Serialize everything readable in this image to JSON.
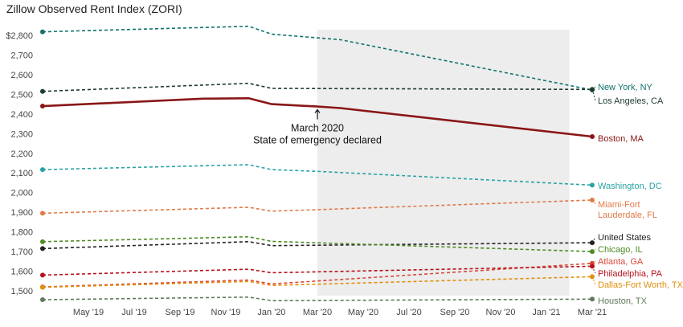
{
  "chart_data": {
    "type": "line",
    "title": "Zillow Observed Rent Index (ZORI)",
    "xlabel": "",
    "ylabel": "",
    "x": [
      "2019-03",
      "2019-04",
      "2019-05",
      "2019-06",
      "2019-07",
      "2019-08",
      "2019-09",
      "2019-10",
      "2019-11",
      "2019-12",
      "2020-01",
      "2020-02",
      "2020-03",
      "2020-04",
      "2020-05",
      "2020-06",
      "2020-07",
      "2020-08",
      "2020-09",
      "2020-10",
      "2020-11",
      "2020-12",
      "2021-01",
      "2021-02",
      "2021-03"
    ],
    "x_ticks": [
      "May '19",
      "Jul '19",
      "Sep '19",
      "Nov '19",
      "Jan '20",
      "Mar '20",
      "May '20",
      "Jul '20",
      "Sep '20",
      "Nov '20",
      "Jan '21",
      "Mar '21"
    ],
    "y_ticks": [
      "$2,800",
      "2,700",
      "2,600",
      "2,500",
      "2,400",
      "2,300",
      "2,200",
      "2,100",
      "2,000",
      "1,900",
      "1,800",
      "1,700",
      "1,600",
      "1,500"
    ],
    "ylim": [
      1460,
      2880
    ],
    "grid": false,
    "shaded_period": [
      "2020-03",
      "2021-02"
    ],
    "annotation": {
      "x": "2020-03",
      "y": 2438,
      "lines": [
        "March 2020",
        "State of emergency declared"
      ]
    },
    "series": [
      {
        "name": "New York, NY",
        "color": "#11736d",
        "style": "dashed",
        "points": [
          [
            "2019-03",
            2818
          ],
          [
            "2019-12",
            2846
          ],
          [
            "2020-01",
            2806
          ],
          [
            "2020-04",
            2778
          ],
          [
            "2021-03",
            2522
          ]
        ]
      },
      {
        "name": "Los Angeles, CA",
        "color": "#1d3b2c",
        "style": "dashed",
        "points": [
          [
            "2019-03",
            2515
          ],
          [
            "2019-12",
            2556
          ],
          [
            "2020-01",
            2530
          ],
          [
            "2021-03",
            2525
          ]
        ]
      },
      {
        "name": "Boston, MA",
        "color": "#8a1616",
        "style": "solid",
        "points": [
          [
            "2019-03",
            2440
          ],
          [
            "2019-10",
            2478
          ],
          [
            "2019-12",
            2480
          ],
          [
            "2020-01",
            2450
          ],
          [
            "2020-03",
            2438
          ],
          [
            "2020-04",
            2430
          ],
          [
            "2021-03",
            2285
          ]
        ]
      },
      {
        "name": "Washington, DC",
        "color": "#2aa3a3",
        "style": "dashed",
        "points": [
          [
            "2019-03",
            2117
          ],
          [
            "2019-12",
            2142
          ],
          [
            "2020-01",
            2117
          ],
          [
            "2020-03",
            2108
          ],
          [
            "2021-03",
            2038
          ]
        ]
      },
      {
        "name": "Miami-Fort\nLauderdale, FL",
        "color": "#e07a47",
        "style": "dashed",
        "points": [
          [
            "2019-03",
            1895
          ],
          [
            "2019-12",
            1925
          ],
          [
            "2020-01",
            1905
          ],
          [
            "2021-03",
            1962
          ]
        ]
      },
      {
        "name": "United States",
        "color": "#222222",
        "style": "dashed",
        "points": [
          [
            "2019-03",
            1715
          ],
          [
            "2019-12",
            1750
          ],
          [
            "2020-01",
            1730
          ],
          [
            "2021-03",
            1745
          ]
        ]
      },
      {
        "name": "Chicago, IL",
        "color": "#4f8a24",
        "style": "dashed",
        "points": [
          [
            "2019-03",
            1750
          ],
          [
            "2019-12",
            1775
          ],
          [
            "2020-01",
            1752
          ],
          [
            "2021-03",
            1700
          ]
        ]
      },
      {
        "name": "Atlanta, GA",
        "color": "#d9483b",
        "style": "dashed",
        "points": [
          [
            "2019-03",
            1520
          ],
          [
            "2019-12",
            1555
          ],
          [
            "2020-01",
            1535
          ],
          [
            "2021-03",
            1640
          ]
        ]
      },
      {
        "name": "Philadelphia, PA",
        "color": "#b5121b",
        "style": "dashed",
        "points": [
          [
            "2019-03",
            1580
          ],
          [
            "2019-12",
            1610
          ],
          [
            "2020-01",
            1592
          ],
          [
            "2021-03",
            1625
          ]
        ]
      },
      {
        "name": "Dallas-Fort Worth, TX",
        "color": "#e0900f",
        "style": "dashed",
        "points": [
          [
            "2019-03",
            1518
          ],
          [
            "2019-12",
            1548
          ],
          [
            "2020-01",
            1528
          ],
          [
            "2021-03",
            1572
          ]
        ]
      },
      {
        "name": "Houston, TX",
        "color": "#5f7a5a",
        "style": "dashed",
        "points": [
          [
            "2019-03",
            1455
          ],
          [
            "2019-12",
            1468
          ],
          [
            "2020-01",
            1450
          ],
          [
            "2021-03",
            1458
          ]
        ]
      }
    ]
  }
}
